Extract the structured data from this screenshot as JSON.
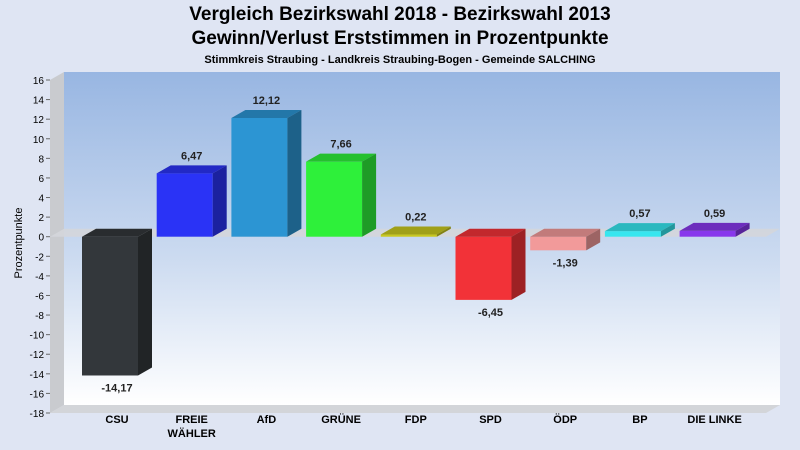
{
  "chart_data": {
    "type": "bar",
    "title": "Vergleich Bezirkswahl 2018 - Bezirkswahl 2013",
    "subtitle": "Gewinn/Verlust Erststimmen in Prozentpunkte",
    "subsubtitle": "Stimmkreis Straubing - Landkreis Straubing-Bogen - Gemeinde SALCHING",
    "ylabel": "Prozentpunkte",
    "ylim": [
      -18,
      16
    ],
    "yticks": [
      16,
      14,
      12,
      10,
      8,
      6,
      4,
      2,
      0,
      -2,
      -4,
      -6,
      -8,
      -10,
      -12,
      -14,
      -16,
      -18
    ],
    "grid": false,
    "categories": [
      [
        "CSU"
      ],
      [
        "FREIE",
        "WÄHLER"
      ],
      [
        "AfD"
      ],
      [
        "GRÜNE"
      ],
      [
        "FDP"
      ],
      [
        "SPD"
      ],
      [
        "ÖDP"
      ],
      [
        "BP"
      ],
      [
        "DIE LINKE"
      ]
    ],
    "values": [
      -14.17,
      6.47,
      12.12,
      7.66,
      0.22,
      -6.45,
      -1.39,
      0.57,
      0.59
    ],
    "value_labels": [
      "-14,17",
      "6,47",
      "12,12",
      "7,66",
      "0,22",
      "-6,45",
      "-1,39",
      "0,57",
      "0,59"
    ],
    "colors": [
      "#33373b",
      "#2a33f6",
      "#2c95d3",
      "#2ef03a",
      "#c8c81e",
      "#f23238",
      "#f29a9a",
      "#36e6ef",
      "#8838ec"
    ]
  }
}
